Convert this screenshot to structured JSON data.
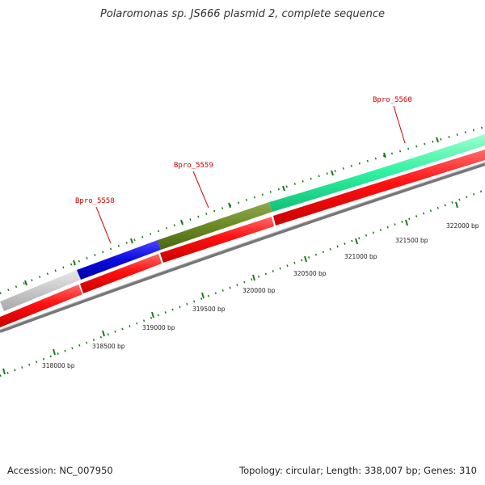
{
  "header": {
    "title": "Polaromonas sp. JS666 plasmid 2, complete sequence"
  },
  "footer": {
    "accession": "Accession: NC_007950",
    "summary": "Topology: circular; Length: 338,007 bp; Genes: 310"
  },
  "map": {
    "scale_labels": [
      "318000 bp",
      "318500 bp",
      "319000 bp",
      "319500 bp",
      "320000 bp",
      "320500 bp",
      "321000 bp",
      "321500 bp",
      "322000 bp"
    ],
    "gene_labels": [
      "Bpro_5558",
      "Bpro_5559",
      "Bpro_5560"
    ],
    "gene_colors": {
      "Bpro_5558": "#0a0ae0",
      "Bpro_5559": "#6b8a23",
      "Bpro_5560": "#2ef0a0",
      "unlabeled_gene": "#c8c8c8",
      "reverse_strand": "#ee1111",
      "backbone": "#777777",
      "tick_color": "#1a7a1a",
      "label_color": "#cc0000"
    }
  }
}
